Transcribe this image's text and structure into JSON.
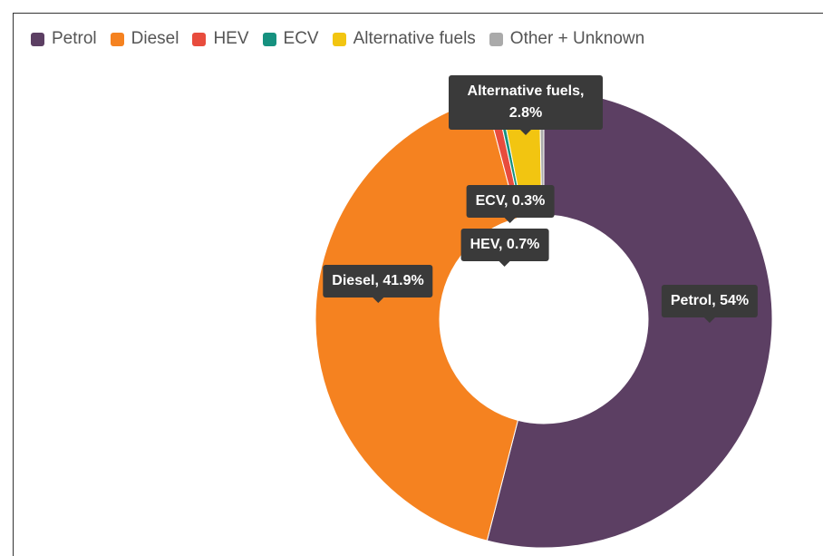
{
  "chart_data": {
    "type": "pie",
    "categories": [
      "Petrol",
      "Diesel",
      "HEV",
      "ECV",
      "Alternative fuels",
      "Other + Unknown"
    ],
    "values": [
      54,
      41.9,
      0.7,
      0.3,
      2.8,
      0.3
    ],
    "value_labels": [
      "Petrol, 54%",
      "Diesel, 41.9%",
      "HEV, 0.7%",
      "ECV, 0.3%",
      "Alternative fuels, 2.8%",
      null
    ],
    "colors": [
      "#5c3f63",
      "#f58220",
      "#e84c3d",
      "#16917f",
      "#f2c511",
      "#aaaaaa"
    ],
    "donut": true,
    "legend": "top"
  }
}
